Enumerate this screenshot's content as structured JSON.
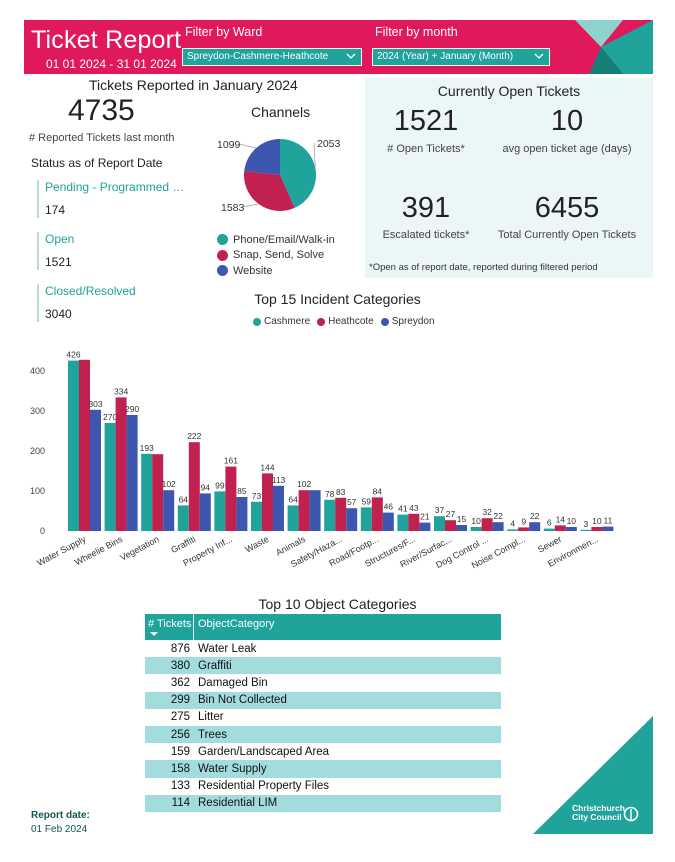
{
  "header": {
    "title": "Ticket Report",
    "date_range": "01 01 2024 - 31 01 2024",
    "ward_filter_label": "Filter by Ward",
    "ward_filter_value": "Spreydon-Cashmere-Heathcote",
    "month_filter_label": "Filter by month",
    "month_filter_value": "2024 (Year) + January (Month)",
    "colors": {
      "pink": "#e0195a",
      "teal": "#1fa39a"
    }
  },
  "reported": {
    "title": "Tickets Reported in January 2024",
    "count": "4735",
    "count_label": "# Reported Tickets last month"
  },
  "status": {
    "title": "Status as of Report Date",
    "items": [
      {
        "label": "Pending - Programmed …",
        "value": "174"
      },
      {
        "label": "Open",
        "value": "1521"
      },
      {
        "label": "Closed/Resolved",
        "value": "3040"
      }
    ]
  },
  "channels": {
    "title": "Channels",
    "slices": [
      {
        "label": "Phone/Email/Walk-in",
        "value": 2053,
        "value_label": "2053",
        "color": "#1fa39a"
      },
      {
        "label": "Snap, Send, Solve",
        "value": 1583,
        "value_label": "1583",
        "color": "#c0214f"
      },
      {
        "label": "Website",
        "value": 1099,
        "value_label": "1099",
        "color": "#3d56b0"
      }
    ]
  },
  "open_tickets": {
    "title": "Currently Open Tickets",
    "open_count": "1521",
    "open_count_label": "# Open Tickets*",
    "avg_age": "10",
    "avg_age_label": "avg open ticket age (days)",
    "escalated": "391",
    "escalated_label": "Escalated tickets*",
    "total_open": "6455",
    "total_open_label": "Total Currently Open Tickets",
    "footnote": "*Open as of report date, reported during filtered period"
  },
  "chart_data": {
    "type": "bar",
    "title": "Top 15 Incident Categories",
    "categories": [
      "Water Supply",
      "Wheelie Bins",
      "Vegetation",
      "Graffiti",
      "Property Inf...",
      "Waste",
      "Animals",
      "Safety/Haza...",
      "Road/Footp...",
      "Structures/F...",
      "River/Surfac...",
      "Dog Control ...",
      "Noise Compl...",
      "Sewer",
      "Environmen..."
    ],
    "series": [
      {
        "name": "Cashmere",
        "color": "#1fa39a",
        "values": [
          426,
          270,
          193,
          64,
          99,
          73,
          64,
          78,
          59,
          41,
          37,
          10,
          4,
          6,
          3
        ]
      },
      {
        "name": "Heathcote",
        "color": "#c0214f",
        "values": [
          428,
          334,
          192,
          222,
          161,
          144,
          102,
          83,
          84,
          43,
          27,
          32,
          9,
          14,
          10
        ]
      },
      {
        "name": "Spreydon",
        "color": "#3d56b0",
        "values": [
          303,
          290,
          102,
          94,
          85,
          113,
          102,
          57,
          46,
          21,
          15,
          22,
          22,
          10,
          11
        ]
      }
    ],
    "labels": [
      [
        "426",
        "",
        "303"
      ],
      [
        "270",
        "334",
        "290"
      ],
      [
        "193",
        "",
        "102"
      ],
      [
        "64",
        "222",
        "94"
      ],
      [
        "99",
        "161",
        "85"
      ],
      [
        "73",
        "144",
        "113"
      ],
      [
        "64",
        "102",
        ""
      ],
      [
        "78",
        "83",
        "57"
      ],
      [
        "59",
        "84",
        "46"
      ],
      [
        "41",
        "43",
        "21"
      ],
      [
        "37",
        "27",
        "15"
      ],
      [
        "10",
        "32",
        "22"
      ],
      [
        "4",
        "9",
        "22"
      ],
      [
        "6",
        "14",
        "10"
      ],
      [
        "3",
        "10",
        "11"
      ]
    ],
    "yticks": [
      "0",
      "100",
      "200",
      "300",
      "400"
    ],
    "ylim": [
      0,
      440
    ],
    "legend": "top-center",
    "grid": false
  },
  "object_table": {
    "title": "Top 10 Object Categories",
    "col_tickets": "# Tickets",
    "col_category": "ObjectCategory",
    "rows": [
      {
        "tickets": "876",
        "category": "Water Leak"
      },
      {
        "tickets": "380",
        "category": "Graffiti"
      },
      {
        "tickets": "362",
        "category": "Damaged Bin"
      },
      {
        "tickets": "299",
        "category": "Bin Not Collected"
      },
      {
        "tickets": "275",
        "category": "Litter"
      },
      {
        "tickets": "256",
        "category": "Trees"
      },
      {
        "tickets": "159",
        "category": "Garden/Landscaped Area"
      },
      {
        "tickets": "158",
        "category": "Water Supply"
      },
      {
        "tickets": "133",
        "category": "Residential Property Files"
      },
      {
        "tickets": "114",
        "category": "Residential LIM"
      }
    ]
  },
  "footer": {
    "report_date_label": "Report date:",
    "report_date": "01 Feb 2024",
    "logo_line1": "Christchurch",
    "logo_line2": "City Council"
  }
}
